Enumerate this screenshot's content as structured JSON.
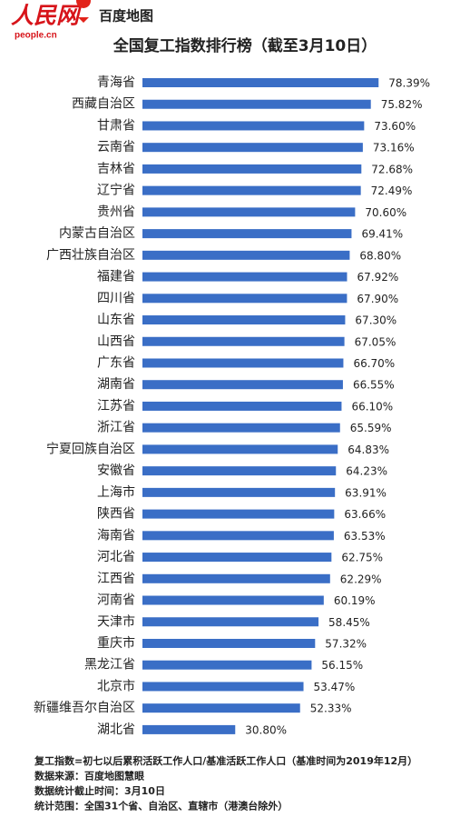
{
  "header": {
    "logo": "人民网",
    "logo_url": "people.cn",
    "partner": "百度地图"
  },
  "chart_data": {
    "type": "barh",
    "title": "全国复工指数排行榜（截至3月10日）",
    "categories": [
      "青海省",
      "西藏自治区",
      "甘肃省",
      "云南省",
      "吉林省",
      "辽宁省",
      "贵州省",
      "内蒙古自治区",
      "广西壮族自治区",
      "福建省",
      "四川省",
      "山东省",
      "山西省",
      "广东省",
      "湖南省",
      "江苏省",
      "浙江省",
      "宁夏回族自治区",
      "安徽省",
      "上海市",
      "陕西省",
      "海南省",
      "河北省",
      "江西省",
      "河南省",
      "天津市",
      "重庆市",
      "黑龙江省",
      "北京市",
      "新疆维吾尔自治区",
      "湖北省"
    ],
    "values": [
      78.39,
      75.82,
      73.6,
      73.16,
      72.68,
      72.49,
      70.6,
      69.41,
      68.8,
      67.92,
      67.9,
      67.3,
      67.05,
      66.7,
      66.55,
      66.1,
      65.59,
      64.83,
      64.23,
      63.91,
      63.66,
      63.53,
      62.75,
      62.29,
      60.19,
      58.45,
      57.32,
      56.15,
      53.47,
      52.33,
      30.8
    ],
    "value_labels": [
      "78.39%",
      "75.82%",
      "73.60%",
      "73.16%",
      "72.68%",
      "72.49%",
      "70.60%",
      "69.41%",
      "68.80%",
      "67.92%",
      "67.90%",
      "67.30%",
      "67.05%",
      "66.70%",
      "66.55%",
      "66.10%",
      "65.59%",
      "64.83%",
      "64.23%",
      "63.91%",
      "63.66%",
      "63.53%",
      "62.75%",
      "62.29%",
      "60.19%",
      "58.45%",
      "57.32%",
      "56.15%",
      "53.47%",
      "52.33%",
      "30.80%"
    ],
    "color": "#3a6ec6",
    "xlim": [
      0,
      100
    ],
    "notes": [
      "复工指数=初七以后累积活跃工作人口/基准活跃工作人口（基准时间为2019年12月）",
      "数据来源：百度地图慧眼",
      "数据统计截止时间：3月10日",
      "统计范围：全国31个省、自治区、直辖市（港澳台除外）"
    ]
  }
}
